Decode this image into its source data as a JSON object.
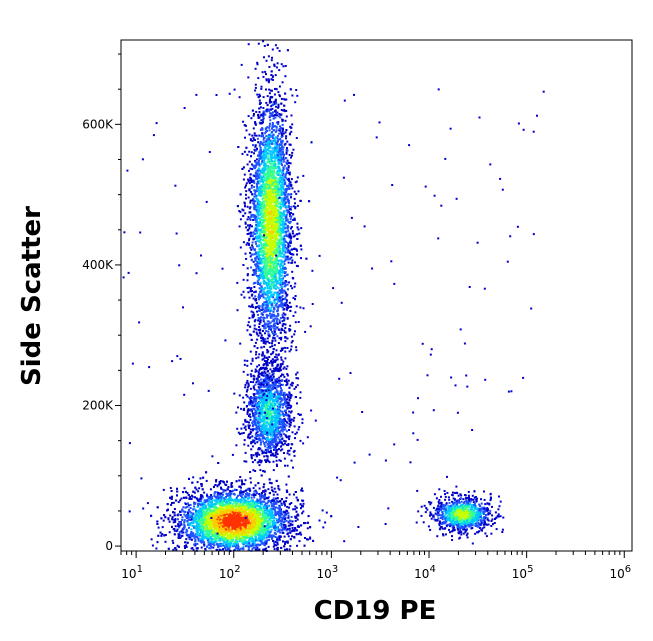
{
  "chart_data": {
    "type": "scatter",
    "title": "",
    "xlabel": "CD19 PE",
    "ylabel": "Side Scatter",
    "x_scale": "log",
    "xlim": [
      7,
      1200000
    ],
    "ylim": [
      -7000,
      720000
    ],
    "x_ticks": [
      {
        "value": 10,
        "base": "10",
        "exp": "1"
      },
      {
        "value": 100,
        "base": "10",
        "exp": "2"
      },
      {
        "value": 1000,
        "base": "10",
        "exp": "3"
      },
      {
        "value": 10000,
        "base": "10",
        "exp": "4"
      },
      {
        "value": 100000,
        "base": "10",
        "exp": "5"
      },
      {
        "value": 1000000,
        "base": "10",
        "exp": "6"
      }
    ],
    "y_ticks": [
      {
        "value": 0,
        "label": "0"
      },
      {
        "value": 200000,
        "label": "200K"
      },
      {
        "value": 400000,
        "label": "400K"
      },
      {
        "value": 600000,
        "label": "600K"
      }
    ],
    "grid": false,
    "legend": "none",
    "colormap": [
      "#0000c8",
      "#1e50ff",
      "#00c8ff",
      "#32ff96",
      "#c8ff00",
      "#ffc800",
      "#ff3200"
    ],
    "populations": [
      {
        "cx": 100,
        "cy": 35000,
        "sx_log": 0.28,
        "sy": 22000,
        "n": 5000,
        "peak": 1.0
      },
      {
        "cx": 230,
        "cy": 190000,
        "sx_log": 0.12,
        "sy": 35000,
        "n": 1500,
        "peak": 0.45
      },
      {
        "cx": 240,
        "cy": 460000,
        "sx_log": 0.11,
        "sy": 90000,
        "n": 4000,
        "peak": 0.7
      },
      {
        "cx": 22000,
        "cy": 45000,
        "sx_log": 0.15,
        "sy": 12000,
        "n": 900,
        "peak": 0.65
      }
    ]
  }
}
